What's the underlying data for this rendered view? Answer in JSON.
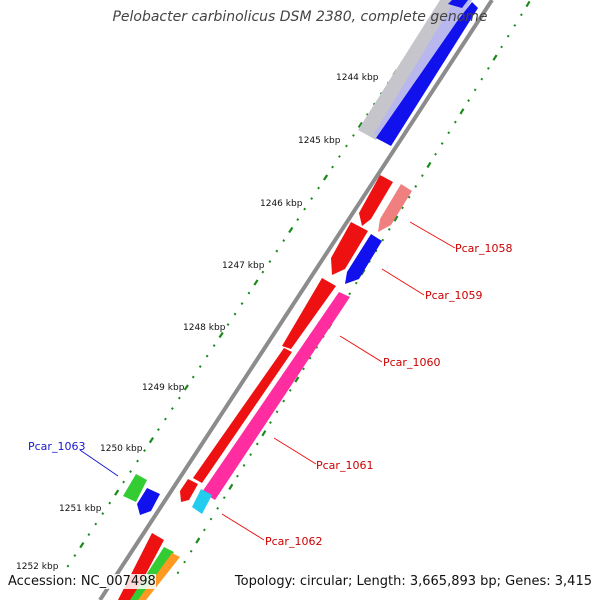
{
  "title": "Pelobacter carbinolicus DSM 2380, complete genome",
  "footer": {
    "accession": "Accession: NC_007498",
    "summary": "Topology: circular; Length: 3,665,893 bp; Genes: 3,415"
  },
  "ticks": [
    "1244 kbp",
    "1245 kbp",
    "1246 kbp",
    "1247 kbp",
    "1248 kbp",
    "1249 kbp",
    "1250 kbp",
    "1251 kbp",
    "1252 kbp"
  ],
  "gene_labels": [
    {
      "text": "Pcar_1058",
      "color": "#cc0000"
    },
    {
      "text": "Pcar_1059",
      "color": "#cc0000"
    },
    {
      "text": "Pcar_1060",
      "color": "#cc0000"
    },
    {
      "text": "Pcar_1061",
      "color": "#cc0000"
    },
    {
      "text": "Pcar_1062",
      "color": "#cc0000"
    },
    {
      "text": "Pcar_1063",
      "color": "#1a1acc"
    }
  ],
  "colors": {
    "backbone": "#888888",
    "red": "#ee1111",
    "blue": "#1111ee",
    "pink": "#ff2da0",
    "salmon": "#f08080",
    "green": "#33cc33",
    "cyan": "#22ccee",
    "orange": "#ff9922",
    "silver": "#c8c8cc",
    "tick": "#1a8a1a"
  }
}
